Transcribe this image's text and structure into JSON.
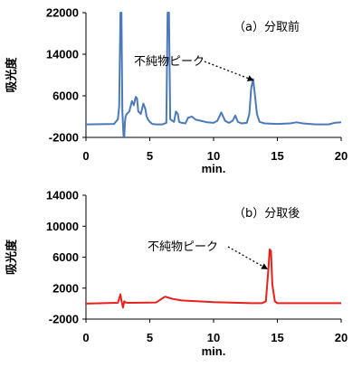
{
  "chart_data": [
    {
      "type": "line",
      "panel_label": "（a）分取前",
      "xlabel": "min.",
      "ylabel": "吸光度",
      "xlim": [
        0,
        20
      ],
      "ylim": [
        -2000,
        22000
      ],
      "xticks": [
        0,
        5,
        10,
        15,
        20
      ],
      "yticks": [
        -2000,
        6000,
        14000,
        22000
      ],
      "grid": false,
      "color": "#4a7ab8",
      "annotation": {
        "text": "不純物ピーク",
        "target_x": 13.1,
        "target_y": 9000
      },
      "series": [
        {
          "x": [
            0,
            2.2,
            2.5,
            2.6,
            2.7,
            2.78,
            2.85,
            2.95,
            3.0,
            3.05,
            3.1,
            3.2,
            3.4,
            3.6,
            3.75,
            3.9,
            4.0,
            4.1,
            4.3,
            4.5,
            4.65,
            4.75,
            4.85,
            5.0,
            5.2,
            5.5,
            6.0,
            6.3,
            6.4,
            6.5,
            6.6,
            6.9,
            7.05,
            7.2,
            7.3,
            7.5,
            7.8,
            8.0,
            8.3,
            8.6,
            9.0,
            9.5,
            10.0,
            10.3,
            10.6,
            10.9,
            11.2,
            11.5,
            11.7,
            11.9,
            12.2,
            12.6,
            12.8,
            12.95,
            13.1,
            13.25,
            13.4,
            13.6,
            14.0,
            15.0,
            16.0,
            16.5,
            17.0,
            18.0,
            19.0,
            19.5,
            20.0
          ],
          "y": [
            500,
            600,
            1500,
            4000,
            22000,
            22000,
            3000,
            -2000,
            -2000,
            800,
            2000,
            2500,
            3000,
            5000,
            4200,
            5800,
            5500,
            3000,
            2500,
            4500,
            3500,
            2000,
            1500,
            1000,
            600,
            500,
            500,
            800,
            22000,
            22000,
            1500,
            1000,
            3000,
            2500,
            1000,
            800,
            700,
            1800,
            2000,
            1400,
            1200,
            900,
            800,
            1200,
            2800,
            1200,
            800,
            1200,
            2200,
            1000,
            700,
            800,
            2500,
            7500,
            9200,
            6000,
            2500,
            1000,
            700,
            600,
            700,
            900,
            700,
            500,
            500,
            800,
            900
          ]
        }
      ]
    },
    {
      "type": "line",
      "panel_label": "（b）分取後",
      "xlabel": "min.",
      "ylabel": "吸光度",
      "xlim": [
        0,
        20
      ],
      "ylim": [
        -2000,
        14000
      ],
      "xticks": [
        0,
        5,
        10,
        15,
        20
      ],
      "yticks": [
        -2000,
        2000,
        6000,
        10000,
        14000
      ],
      "grid": false,
      "color": "#e8201c",
      "annotation": {
        "text": "不純物ピーク",
        "target_x": 14.2,
        "target_y": 4500
      },
      "series": [
        {
          "x": [
            0,
            2.5,
            2.7,
            2.8,
            2.9,
            3.0,
            3.1,
            3.3,
            5.5,
            6.0,
            6.2,
            6.4,
            6.8,
            7.5,
            10.0,
            12.0,
            13.0,
            13.8,
            14.1,
            14.3,
            14.4,
            14.5,
            14.6,
            14.8,
            15.0,
            16.0,
            18.0,
            20.0
          ],
          "y": [
            0,
            100,
            1200,
            200,
            -500,
            300,
            150,
            100,
            150,
            700,
            900,
            800,
            600,
            400,
            200,
            100,
            50,
            50,
            300,
            4500,
            7000,
            6800,
            2500,
            300,
            50,
            50,
            50,
            50
          ]
        }
      ]
    }
  ]
}
